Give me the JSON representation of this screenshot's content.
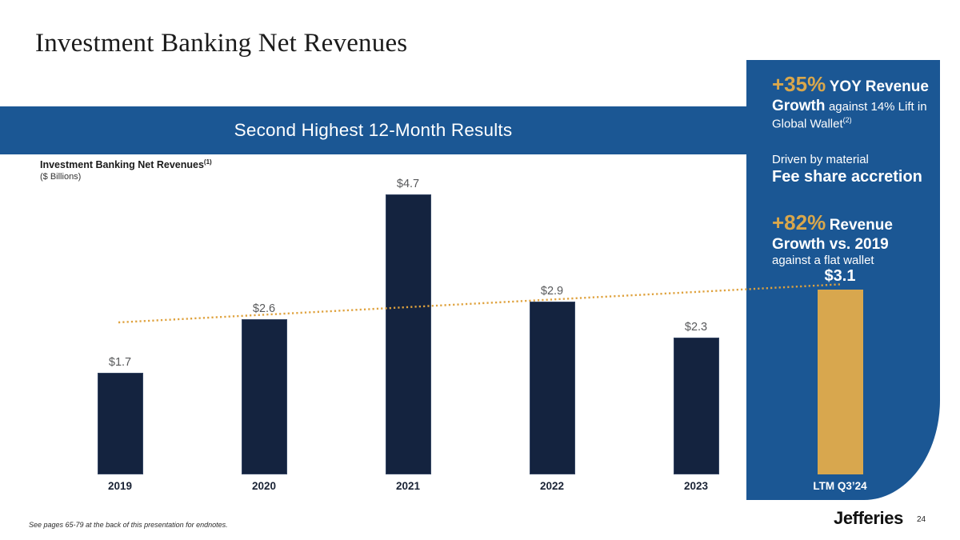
{
  "slide": {
    "title": "Investment Banking Net Revenues",
    "banner": "Second Highest 12-Month Results",
    "footnote": "See pages 65-79 at the back of this presentation for endnotes.",
    "logo": "Jefferies",
    "page_number": "24"
  },
  "chart_header": {
    "title": "Investment Banking Net Revenues",
    "title_sup": "(1)",
    "subtitle": "($ Billions)"
  },
  "chart_data": {
    "type": "bar",
    "title": "Investment Banking Net Revenues ($ Billions)",
    "categories": [
      "2019",
      "2020",
      "2021",
      "2022",
      "2023",
      "LTM Q3’24"
    ],
    "values": [
      1.7,
      2.6,
      4.7,
      2.9,
      2.3,
      3.1
    ],
    "value_labels": [
      "$1.7",
      "$2.6",
      "$4.7",
      "$2.9",
      "$2.3",
      "$3.1"
    ],
    "highlight_index": 5,
    "ylim": [
      0,
      5
    ],
    "grid": false,
    "legend": "none",
    "bar_color": "#14233f",
    "highlight_bar_color": "#d8a74e",
    "trendline": {
      "style": "dotted",
      "color": "#dfa23e",
      "start_value": 2.55,
      "end_value": 3.19
    }
  },
  "panel": {
    "background": "#1b5794",
    "accent": "#d9a74c",
    "stat1": {
      "pct": "+35%",
      "bold": "YOY Revenue Growth",
      "normal": "against 14% Lift in Global Wallet",
      "sup": "(2)"
    },
    "stat2": {
      "intro": "Driven by material",
      "bold": "Fee share accretion"
    },
    "stat3": {
      "pct": "+82%",
      "bold": "Revenue Growth vs. 2019",
      "normal": "against a flat wallet"
    }
  }
}
